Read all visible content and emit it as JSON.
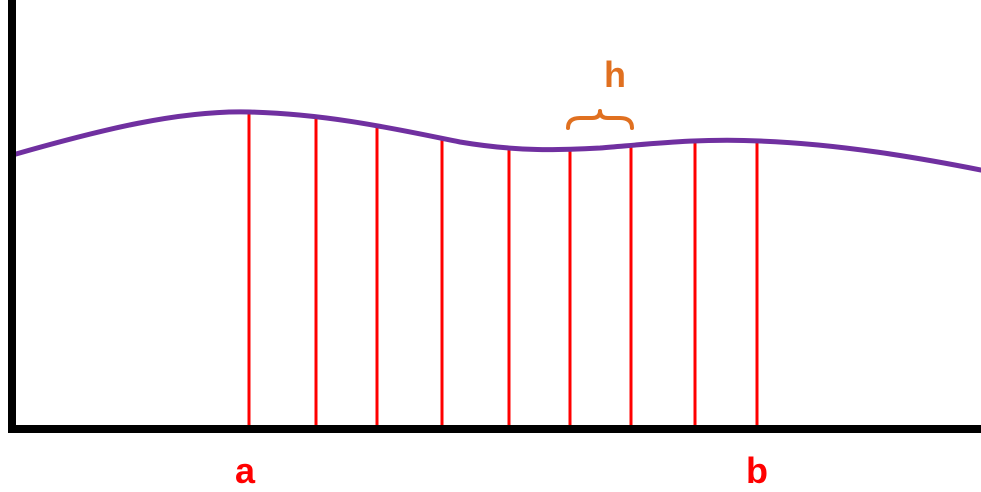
{
  "labels": {
    "a": "a",
    "b": "b",
    "h": "h"
  },
  "colors": {
    "axes": "#000000",
    "curve": "#7030A0",
    "partition_lines": "#FF0000",
    "endpoint_labels": "#FF0000",
    "step_label": "#E07020"
  },
  "partition": {
    "interval_start_label": "a",
    "interval_end_label": "b",
    "subintervals": 8,
    "step_label": "h"
  }
}
